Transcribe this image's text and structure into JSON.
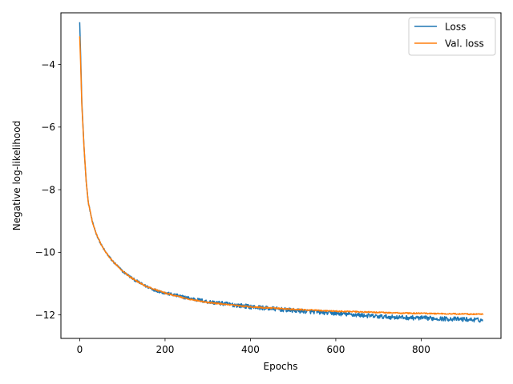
{
  "chart_data": {
    "type": "line",
    "title": "",
    "xlabel": "Epochs",
    "ylabel": "Negative log-likelihood",
    "xlim": [
      -44,
      987
    ],
    "ylim": [
      -12.75,
      -2.35
    ],
    "xticks": [
      0,
      200,
      400,
      600,
      800
    ],
    "yticks": [
      -12,
      -10,
      -8,
      -6,
      -4
    ],
    "xtick_labels": [
      "0",
      "200",
      "400",
      "600",
      "800"
    ],
    "ytick_labels": [
      "−12",
      "−10",
      "−8",
      "−6",
      "−4"
    ],
    "grid": false,
    "legend_position": "top-right",
    "x_max": 945,
    "series": [
      {
        "name": "Loss",
        "color": "#1f77b4",
        "noise_amplitude": 0.07,
        "points": [
          [
            0,
            -2.65
          ],
          [
            2,
            -3.6
          ],
          [
            5,
            -5.2
          ],
          [
            10,
            -6.6
          ],
          [
            15,
            -7.7
          ],
          [
            20,
            -8.4
          ],
          [
            30,
            -9.05
          ],
          [
            40,
            -9.45
          ],
          [
            50,
            -9.75
          ],
          [
            60,
            -9.98
          ],
          [
            75,
            -10.25
          ],
          [
            100,
            -10.6
          ],
          [
            125,
            -10.85
          ],
          [
            150,
            -11.05
          ],
          [
            175,
            -11.2
          ],
          [
            200,
            -11.3
          ],
          [
            250,
            -11.45
          ],
          [
            300,
            -11.58
          ],
          [
            350,
            -11.66
          ],
          [
            400,
            -11.74
          ],
          [
            450,
            -11.8
          ],
          [
            500,
            -11.86
          ],
          [
            550,
            -11.9
          ],
          [
            600,
            -11.95
          ],
          [
            650,
            -12.0
          ],
          [
            700,
            -12.05
          ],
          [
            750,
            -12.08
          ],
          [
            800,
            -12.1
          ],
          [
            850,
            -12.12
          ],
          [
            900,
            -12.14
          ],
          [
            945,
            -12.17
          ]
        ]
      },
      {
        "name": "Val. loss",
        "color": "#ff7f0e",
        "noise_amplitude": 0.02,
        "points": [
          [
            0,
            -3.1
          ],
          [
            2,
            -3.9
          ],
          [
            5,
            -5.3
          ],
          [
            10,
            -6.6
          ],
          [
            15,
            -7.7
          ],
          [
            20,
            -8.4
          ],
          [
            30,
            -9.05
          ],
          [
            40,
            -9.45
          ],
          [
            50,
            -9.75
          ],
          [
            60,
            -9.98
          ],
          [
            75,
            -10.25
          ],
          [
            100,
            -10.6
          ],
          [
            125,
            -10.85
          ],
          [
            150,
            -11.05
          ],
          [
            175,
            -11.18
          ],
          [
            200,
            -11.3
          ],
          [
            250,
            -11.48
          ],
          [
            300,
            -11.6
          ],
          [
            350,
            -11.68
          ],
          [
            400,
            -11.74
          ],
          [
            450,
            -11.78
          ],
          [
            500,
            -11.82
          ],
          [
            550,
            -11.85
          ],
          [
            600,
            -11.88
          ],
          [
            650,
            -11.9
          ],
          [
            700,
            -11.92
          ],
          [
            750,
            -11.94
          ],
          [
            800,
            -11.95
          ],
          [
            850,
            -11.96
          ],
          [
            900,
            -11.97
          ],
          [
            945,
            -11.98
          ]
        ]
      }
    ]
  }
}
